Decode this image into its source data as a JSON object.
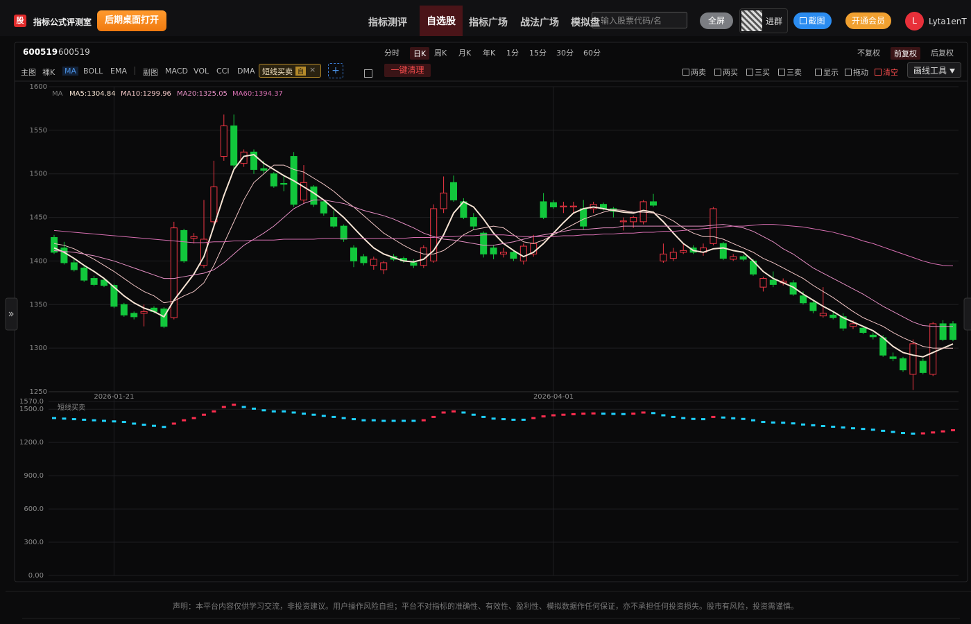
{
  "header": {
    "logo": "股",
    "app_name": "指标公式评测室",
    "desktop_button": "后期桌面打开",
    "nav": [
      "指标测评",
      "自选股",
      "指标广场",
      "战法广场",
      "模拟盘"
    ],
    "active_nav": 1,
    "search_placeholder": "输入股票代码/名",
    "fullscreen": "全屏",
    "group": "进群",
    "screenshot": "截图",
    "vip": "开通会员",
    "avatar": "L",
    "user": "Lyta1enT"
  },
  "toolbar": {
    "code": "600519",
    "name": "600519",
    "periods": [
      "分时",
      "日K",
      "周K",
      "月K",
      "年K",
      "1分",
      "15分",
      "30分",
      "60分"
    ],
    "active_period": 1,
    "adjust": [
      "不复权",
      "前复权",
      "后复权"
    ],
    "active_adjust": 1,
    "main_label": "主图",
    "main": [
      "裸K",
      "MA",
      "BOLL",
      "EMA"
    ],
    "active_main": 1,
    "sub_label": "副图",
    "sub": [
      "MACD",
      "VOL",
      "CCI",
      "DMA"
    ],
    "indicator": "短线买卖",
    "indicator_tag": "自",
    "add": "+",
    "clear_all": "一键清理",
    "checks": [
      "两卖",
      "两买",
      "三买",
      "三卖",
      "显示",
      "拖动",
      "清空"
    ],
    "draw_tools": "画线工具"
  },
  "chart_data": [
    {
      "type": "candlestick",
      "legend_title": "MA",
      "ylim": [
        1250,
        1600
      ],
      "yticks": [
        1250,
        1300,
        1350,
        1400,
        1450,
        1500,
        1550,
        1600
      ],
      "grid": true,
      "up_color": "#f23645",
      "down_color": "#12c73c",
      "categories": [
        null,
        null,
        null,
        null,
        null,
        null,
        "2026-01-21",
        null,
        null,
        null,
        null,
        null,
        null,
        null,
        null,
        null,
        null,
        null,
        null,
        null,
        null,
        null,
        null,
        null,
        null,
        null,
        null,
        null,
        null,
        null,
        null,
        null,
        null,
        null,
        null,
        null,
        null,
        null,
        null,
        null,
        null,
        null,
        null,
        null,
        null,
        null,
        null,
        null,
        null,
        null,
        "2026-04-01",
        null,
        null,
        null,
        null,
        null,
        null,
        null,
        null,
        null,
        null,
        null,
        null,
        null,
        null,
        null,
        null,
        null,
        null,
        null,
        null,
        null,
        null,
        null,
        null,
        null,
        null,
        null,
        null,
        null,
        null,
        null,
        null,
        null,
        null,
        null,
        null,
        null,
        null,
        null,
        null
      ],
      "ohlc": [
        [
          1427,
          1430,
          1408,
          1410
        ],
        [
          1415,
          1422,
          1396,
          1398
        ],
        [
          1398,
          1402,
          1388,
          1390
        ],
        [
          1392,
          1395,
          1376,
          1378
        ],
        [
          1380,
          1383,
          1371,
          1373
        ],
        [
          1378,
          1380,
          1370,
          1372
        ],
        [
          1372,
          1374,
          1346,
          1348
        ],
        [
          1350,
          1352,
          1336,
          1338
        ],
        [
          1340,
          1342,
          1333,
          1336
        ],
        [
          1340,
          1350,
          1325,
          1342
        ],
        [
          1346,
          1348,
          1340,
          1342
        ],
        [
          1345,
          1347,
          1323,
          1325
        ],
        [
          1335,
          1445,
          1333,
          1438
        ],
        [
          1435,
          1437,
          1398,
          1400
        ],
        [
          1426,
          1432,
          1420,
          1428
        ],
        [
          1395,
          1470,
          1392,
          1425
        ],
        [
          1445,
          1515,
          1440,
          1485
        ],
        [
          1520,
          1568,
          1515,
          1555
        ],
        [
          1555,
          1568,
          1505,
          1510
        ],
        [
          1512,
          1528,
          1508,
          1525
        ],
        [
          1525,
          1528,
          1500,
          1505
        ],
        [
          1506,
          1515,
          1500,
          1504
        ],
        [
          1500,
          1502,
          1484,
          1486
        ],
        [
          1489,
          1498,
          1480,
          1488
        ],
        [
          1520,
          1525,
          1462,
          1465
        ],
        [
          1470,
          1510,
          1466,
          1490
        ],
        [
          1485,
          1487,
          1462,
          1465
        ],
        [
          1468,
          1470,
          1452,
          1455
        ],
        [
          1450,
          1458,
          1438,
          1440
        ],
        [
          1440,
          1442,
          1422,
          1425
        ],
        [
          1415,
          1418,
          1393,
          1400
        ],
        [
          1405,
          1408,
          1395,
          1398
        ],
        [
          1395,
          1405,
          1390,
          1402
        ],
        [
          1390,
          1400,
          1385,
          1398
        ],
        [
          1405,
          1408,
          1400,
          1402
        ],
        [
          1403,
          1405,
          1398,
          1400
        ],
        [
          1398,
          1402,
          1392,
          1395
        ],
        [
          1395,
          1418,
          1392,
          1415
        ],
        [
          1400,
          1465,
          1398,
          1460
        ],
        [
          1460,
          1497,
          1455,
          1478
        ],
        [
          1490,
          1498,
          1468,
          1470
        ],
        [
          1468,
          1472,
          1448,
          1450
        ],
        [
          1450,
          1455,
          1436,
          1440
        ],
        [
          1432,
          1434,
          1404,
          1408
        ],
        [
          1415,
          1418,
          1402,
          1408
        ],
        [
          1408,
          1415,
          1404,
          1410
        ],
        [
          1410,
          1412,
          1400,
          1403
        ],
        [
          1400,
          1420,
          1396,
          1417
        ],
        [
          1408,
          1430,
          1405,
          1420
        ],
        [
          1468,
          1478,
          1448,
          1450
        ],
        [
          1467,
          1470,
          1460,
          1462
        ],
        [
          1462,
          1468,
          1455,
          1463
        ],
        [
          1462,
          1468,
          1455,
          1463
        ],
        [
          1460,
          1470,
          1436,
          1440
        ],
        [
          1460,
          1468,
          1455,
          1465
        ],
        [
          1465,
          1467,
          1458,
          1460
        ],
        [
          1460,
          1462,
          1450,
          1457
        ],
        [
          1445,
          1450,
          1435,
          1446
        ],
        [
          1445,
          1452,
          1438,
          1450
        ],
        [
          1445,
          1470,
          1442,
          1468
        ],
        [
          1468,
          1477,
          1462,
          1464
        ],
        [
          1400,
          1420,
          1398,
          1408
        ],
        [
          1403,
          1415,
          1400,
          1410
        ],
        [
          1410,
          1420,
          1408,
          1412
        ],
        [
          1415,
          1418,
          1408,
          1410
        ],
        [
          1410,
          1420,
          1406,
          1415
        ],
        [
          1420,
          1462,
          1418,
          1460
        ],
        [
          1420,
          1422,
          1401,
          1403
        ],
        [
          1402,
          1408,
          1400,
          1405
        ],
        [
          1405,
          1407,
          1400,
          1402
        ],
        [
          1400,
          1402,
          1383,
          1385
        ],
        [
          1370,
          1382,
          1365,
          1380
        ],
        [
          1378,
          1388,
          1370,
          1373
        ],
        [
          1375,
          1380,
          1372,
          1377
        ],
        [
          1375,
          1378,
          1360,
          1362
        ],
        [
          1360,
          1365,
          1350,
          1352
        ],
        [
          1352,
          1355,
          1340,
          1343
        ],
        [
          1337,
          1370,
          1335,
          1340
        ],
        [
          1338,
          1342,
          1333,
          1335
        ],
        [
          1336,
          1340,
          1320,
          1323
        ],
        [
          1325,
          1332,
          1322,
          1328
        ],
        [
          1323,
          1326,
          1316,
          1318
        ],
        [
          1315,
          1318,
          1310,
          1313
        ],
        [
          1312,
          1315,
          1290,
          1292
        ],
        [
          1290,
          1295,
          1285,
          1288
        ],
        [
          1288,
          1290,
          1273,
          1275
        ],
        [
          1270,
          1310,
          1252,
          1305
        ],
        [
          1285,
          1288,
          1270,
          1272
        ],
        [
          1270,
          1330,
          1268,
          1328
        ],
        [
          1328,
          1332,
          1308,
          1310
        ],
        [
          1328,
          1331,
          1308,
          1310
        ]
      ],
      "series": [
        {
          "name": "MA5",
          "legend_label": "MA5:1304.84",
          "color": "#f6e3d3",
          "values": [
            1415,
            1410,
            1403,
            1395,
            1388,
            1380,
            1370,
            1360,
            1352,
            1346,
            1342,
            1336,
            1355,
            1370,
            1385,
            1405,
            1440,
            1475,
            1505,
            1520,
            1522,
            1512,
            1505,
            1498,
            1492,
            1485,
            1478,
            1470,
            1460,
            1450,
            1438,
            1426,
            1415,
            1408,
            1404,
            1400,
            1399,
            1402,
            1412,
            1430,
            1455,
            1468,
            1462,
            1448,
            1432,
            1420,
            1412,
            1405,
            1410,
            1420,
            1432,
            1444,
            1455,
            1460,
            1462,
            1460,
            1458,
            1456,
            1455,
            1458,
            1456,
            1445,
            1432,
            1420,
            1412,
            1410,
            1414,
            1415,
            1412,
            1410,
            1400,
            1388,
            1380,
            1375,
            1370,
            1362,
            1355,
            1348,
            1342,
            1335,
            1330,
            1325,
            1320,
            1312,
            1302,
            1295,
            1292,
            1290,
            1295,
            1300,
            1304.84
          ]
        },
        {
          "name": "MA10",
          "legend_label": "MA10:1299.96",
          "color": "#f2c6c6",
          "values": [
            1420,
            1418,
            1414,
            1408,
            1402,
            1395,
            1388,
            1380,
            1372,
            1365,
            1360,
            1352,
            1354,
            1360,
            1365,
            1375,
            1395,
            1420,
            1445,
            1470,
            1490,
            1500,
            1510,
            1510,
            1505,
            1502,
            1495,
            1488,
            1480,
            1470,
            1462,
            1452,
            1442,
            1432,
            1425,
            1418,
            1412,
            1408,
            1408,
            1412,
            1420,
            1430,
            1436,
            1438,
            1440,
            1438,
            1430,
            1422,
            1420,
            1424,
            1430,
            1436,
            1442,
            1448,
            1452,
            1456,
            1459,
            1458,
            1456,
            1456,
            1455,
            1452,
            1446,
            1438,
            1432,
            1428,
            1428,
            1425,
            1420,
            1415,
            1410,
            1403,
            1398,
            1392,
            1386,
            1380,
            1372,
            1365,
            1358,
            1350,
            1342,
            1335,
            1330,
            1325,
            1318,
            1312,
            1307,
            1302,
            1300,
            1300,
            1299.96
          ]
        },
        {
          "name": "MA20",
          "legend_label": "MA20:1325.05",
          "color": "#e58fc4",
          "values": [
            1412,
            1411,
            1410,
            1408,
            1406,
            1403,
            1400,
            1396,
            1392,
            1388,
            1384,
            1380,
            1380,
            1382,
            1384,
            1386,
            1390,
            1398,
            1408,
            1418,
            1425,
            1432,
            1440,
            1450,
            1460,
            1466,
            1470,
            1470,
            1468,
            1466,
            1462,
            1458,
            1455,
            1452,
            1448,
            1443,
            1438,
            1432,
            1428,
            1425,
            1424,
            1422,
            1420,
            1418,
            1418,
            1420,
            1422,
            1425,
            1428,
            1430,
            1432,
            1434,
            1436,
            1436,
            1437,
            1438,
            1438,
            1440,
            1440,
            1440,
            1440,
            1440,
            1440,
            1440,
            1440,
            1440,
            1441,
            1442,
            1440,
            1438,
            1434,
            1428,
            1422,
            1414,
            1408,
            1400,
            1392,
            1386,
            1380,
            1374,
            1368,
            1362,
            1355,
            1348,
            1342,
            1336,
            1330,
            1326,
            1325,
            1325,
            1325.05
          ]
        },
        {
          "name": "MA60",
          "legend_label": "MA60:1394.37",
          "color": "#d86fb2",
          "values": [
            1435,
            1434,
            1433,
            1432,
            1431,
            1430,
            1429,
            1428,
            1427,
            1426,
            1425,
            1424,
            1423,
            1422,
            1421,
            1421,
            1422,
            1422,
            1423,
            1423,
            1424,
            1424,
            1424,
            1425,
            1425,
            1425,
            1425,
            1426,
            1426,
            1426,
            1426,
            1426,
            1426,
            1426,
            1426,
            1426,
            1427,
            1427,
            1427,
            1428,
            1428,
            1429,
            1429,
            1430,
            1430,
            1430,
            1429,
            1428,
            1428,
            1428,
            1428,
            1429,
            1429,
            1430,
            1430,
            1431,
            1431,
            1432,
            1432,
            1433,
            1433,
            1434,
            1434,
            1435,
            1436,
            1437,
            1438,
            1439,
            1440,
            1440,
            1441,
            1442,
            1442,
            1441,
            1440,
            1439,
            1437,
            1435,
            1433,
            1430,
            1427,
            1423,
            1420,
            1416,
            1412,
            1408,
            1404,
            1400,
            1397,
            1395,
            1394.37
          ]
        }
      ]
    },
    {
      "type": "dash",
      "title": "短线买卖",
      "ylim": [
        0,
        1570
      ],
      "yticks": [
        {
          "value": 0,
          "label": "0.00"
        },
        {
          "value": 300,
          "label": "300.0"
        },
        {
          "value": 600,
          "label": "600.0"
        },
        {
          "value": 900,
          "label": "900.0"
        },
        {
          "value": 1200,
          "label": "1200.0"
        },
        {
          "value": 1500,
          "label": "1500.0"
        },
        {
          "value": 1570,
          "label": "1570.0"
        }
      ],
      "grid": true,
      "up_color": "#ff2d4f",
      "down_color": "#1fd2ff",
      "values": [
        1420,
        1415,
        1410,
        1405,
        1400,
        1395,
        1390,
        1385,
        1370,
        1360,
        1350,
        1340,
        1370,
        1400,
        1420,
        1450,
        1480,
        1520,
        1540,
        1520,
        1505,
        1490,
        1480,
        1480,
        1470,
        1460,
        1450,
        1440,
        1430,
        1420,
        1410,
        1400,
        1400,
        1395,
        1395,
        1395,
        1395,
        1400,
        1430,
        1470,
        1480,
        1470,
        1450,
        1430,
        1415,
        1410,
        1405,
        1405,
        1420,
        1435,
        1445,
        1450,
        1455,
        1460,
        1462,
        1460,
        1458,
        1456,
        1460,
        1470,
        1465,
        1445,
        1430,
        1420,
        1412,
        1410,
        1430,
        1425,
        1418,
        1412,
        1400,
        1385,
        1380,
        1378,
        1372,
        1362,
        1355,
        1348,
        1342,
        1335,
        1328,
        1322,
        1315,
        1305,
        1295,
        1285,
        1280,
        1282,
        1290,
        1300,
        1310
      ]
    }
  ],
  "footer": "声明：本平台内容仅供学习交流，非投资建议。用户操作风险自担；平台不对指标的准确性、有效性、盈利性、模拟数据作任何保证，亦不承担任何投资损失。股市有风险，投资需谨慎。"
}
